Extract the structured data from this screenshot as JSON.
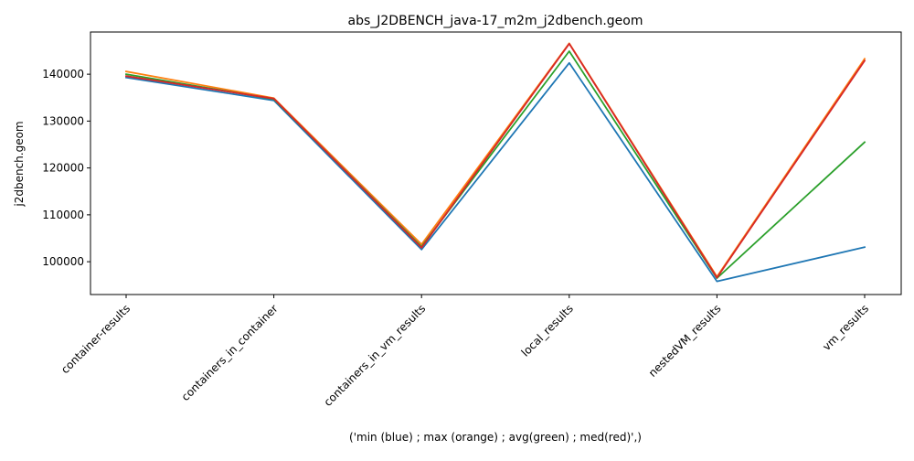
{
  "chart_data": {
    "type": "line",
    "title": "abs_J2DBENCH_java-17_m2m_j2dbench.geom",
    "xlabel": "('min (blue) ; max (orange) ; avg(green) ; med(red)',)",
    "ylabel": "j2dbench.geom",
    "categories": [
      "container-results",
      "containers_in_container",
      "containers_in_vm_results",
      "local_results",
      "nestedVM_results",
      "vm_results"
    ],
    "ylim": [
      93000,
      149000
    ],
    "yticks": [
      100000,
      110000,
      120000,
      130000,
      140000
    ],
    "ytick_labels": [
      "100000",
      "110000",
      "120000",
      "130000",
      "140000"
    ],
    "grid": false,
    "series": [
      {
        "color": "#1f77b4",
        "values": [
          139300,
          134400,
          102600,
          142400,
          95800,
          103100
        ]
      },
      {
        "color": "#ff7f0e",
        "values": [
          140600,
          134900,
          103700,
          146600,
          96800,
          143300
        ]
      },
      {
        "color": "#2ca02c",
        "values": [
          140000,
          134700,
          103200,
          144900,
          96500,
          125500
        ]
      },
      {
        "color": "#d62728",
        "values": [
          139600,
          134800,
          103000,
          146500,
          96600,
          142900
        ]
      }
    ]
  }
}
